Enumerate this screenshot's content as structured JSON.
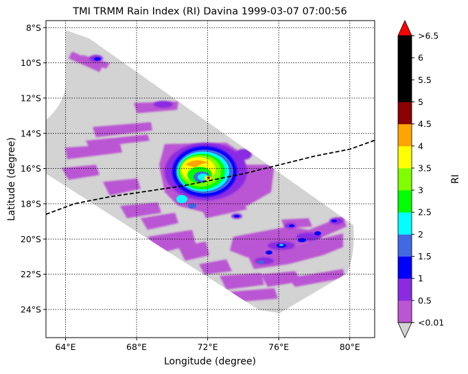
{
  "title": "TMI TRMM Rain Index (RI) Davina 1999-03-07 07:00:56",
  "xlabel": "Longitude (degree)",
  "ylabel": "Latitude (degree)",
  "colorbar": {
    "label": "RI",
    "ticks": [
      "<0.01",
      "0.5",
      "1",
      "1.5",
      "2",
      "2.5",
      "3",
      "3.5",
      "4",
      "4.5",
      "5",
      "5.5",
      "6",
      ">6.5"
    ],
    "colors": [
      "#ba55d3",
      "#8a2be2",
      "#0000ff",
      "#4169e1",
      "#00ffff",
      "#00ff00",
      "#7fff00",
      "#ffff00",
      "#ffa500",
      "#8b0000",
      "#000000",
      "#000000",
      "#000000"
    ],
    "under_color": "#d3d3d3",
    "over_color": "#ff0000"
  },
  "chart_data": {
    "type": "heatmap",
    "title": "TMI TRMM Rain Index (RI) Davina 1999-03-07 07:00:56",
    "xlabel": "Longitude (degree)",
    "ylabel": "Latitude (degree)",
    "xlim": [
      62.9,
      81.4
    ],
    "ylim": [
      -25.6,
      -7.6
    ],
    "x_ticks": [
      64,
      68,
      72,
      76,
      80
    ],
    "x_tick_labels": [
      "64°E",
      "68°E",
      "72°E",
      "76°E",
      "80°E"
    ],
    "y_ticks": [
      -8,
      -10,
      -12,
      -14,
      -16,
      -18,
      -20,
      -22,
      -24
    ],
    "y_tick_labels": [
      "8°S",
      "10°S",
      "12°S",
      "14°S",
      "16°S",
      "18°S",
      "20°S",
      "22°S",
      "24°S"
    ],
    "grid": true,
    "colorbar_label": "RI",
    "storm_center": {
      "lon": 72.0,
      "lat": -16.6
    },
    "track": [
      {
        "lon": 62.9,
        "lat": -18.6
      },
      {
        "lon": 64.5,
        "lat": -18.0
      },
      {
        "lon": 66.5,
        "lat": -17.6
      },
      {
        "lon": 68.5,
        "lat": -17.3
      },
      {
        "lon": 70.5,
        "lat": -17.0
      },
      {
        "lon": 72.0,
        "lat": -16.7
      },
      {
        "lon": 74.0,
        "lat": -16.3
      },
      {
        "lon": 76.0,
        "lat": -15.8
      },
      {
        "lon": 78.0,
        "lat": -15.3
      },
      {
        "lon": 80.0,
        "lat": -14.9
      },
      {
        "lon": 81.4,
        "lat": -14.4
      }
    ]
  }
}
